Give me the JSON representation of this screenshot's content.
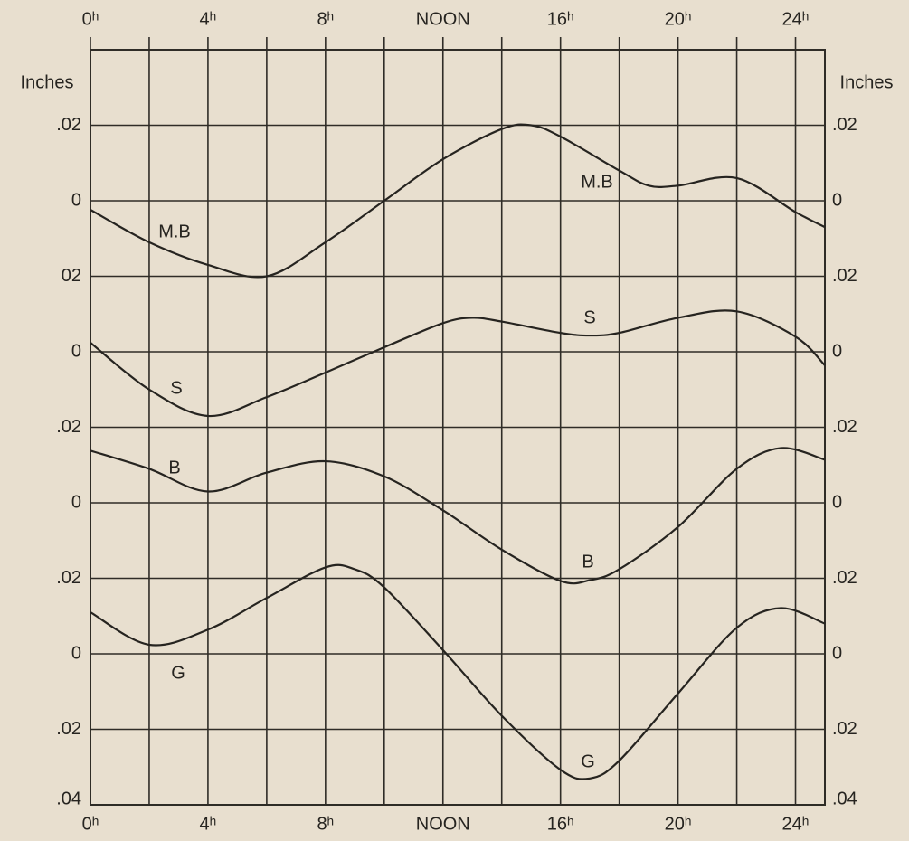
{
  "chart_data": [
    {
      "type": "line",
      "ylabel": "Inches",
      "y2label": "Inches",
      "grid": true,
      "xlim": [
        0,
        25
      ],
      "xticks": [
        {
          "value": 0,
          "label": "0ʰ"
        },
        {
          "value": 4,
          "label": "4ʰ"
        },
        {
          "value": 8,
          "label": "8ʰ"
        },
        {
          "value": 12,
          "label": "NOON"
        },
        {
          "value": 16,
          "label": "16ʰ"
        },
        {
          "value": 20,
          "label": "20ʰ"
        },
        {
          "value": 24,
          "label": "24ʰ"
        }
      ],
      "xminorticks": [
        2,
        6,
        10,
        14,
        18,
        22
      ],
      "ylim": [
        -0.16,
        0.04
      ],
      "yticks": [
        {
          "value": 0.02,
          "label": ".02"
        },
        0,
        {
          "value": -0.02,
          "label": "02"
        }
      ],
      "y2lim": [
        -0.16,
        0.04
      ],
      "y2ticks": [
        {
          "value": 0.02,
          "label": ".02"
        },
        0,
        {
          "value": -0.02,
          "label": ".02"
        }
      ],
      "series": [
        {
          "name": "M.B",
          "color": "#262420",
          "x": [
            0,
            2,
            4,
            6,
            8,
            10,
            12,
            14,
            15,
            16,
            18,
            19,
            20,
            22,
            24,
            25
          ],
          "values": [
            -0.0024,
            -0.011,
            -0.017,
            -0.02,
            -0.011,
            0,
            0.011,
            0.019,
            0.02,
            0.017,
            0.008,
            0.004,
            0.004,
            0.006,
            -0.003,
            -0.007
          ]
        }
      ]
    },
    {
      "type": "line",
      "ylim": [
        -0.12,
        0.08
      ],
      "yticks": [
        0,
        {
          "value": -0.02,
          "label": ".02"
        }
      ],
      "y2lim": [
        -0.12,
        0.08
      ],
      "y2ticks": [
        0,
        {
          "value": -0.02,
          "label": ".02"
        }
      ],
      "series": [
        {
          "name": "S",
          "color": "#262420",
          "x": [
            0,
            2,
            4,
            6,
            8,
            10,
            12,
            13,
            14,
            16,
            17,
            18,
            20,
            22,
            24,
            25
          ],
          "values": [
            0.0024,
            -0.01,
            -0.017,
            -0.012,
            -0.0055,
            0.0012,
            0.0076,
            0.009,
            0.008,
            0.005,
            0.0043,
            0.005,
            0.009,
            0.0107,
            0.004,
            -0.0036
          ]
        }
      ]
    },
    {
      "type": "line",
      "ylim": [
        -0.08,
        0.12
      ],
      "yticks": [
        0,
        {
          "value": -0.02,
          "label": ".02"
        }
      ],
      "y2lim": [
        -0.08,
        0.12
      ],
      "y2ticks": [
        0,
        {
          "value": -0.02,
          "label": ".02"
        }
      ],
      "series": [
        {
          "name": "B",
          "color": "#262420",
          "x": [
            0,
            2,
            4,
            6,
            8,
            10,
            12,
            14,
            16,
            17,
            18,
            20,
            22,
            23.5,
            25
          ],
          "values": [
            0.0138,
            0.009,
            0.003,
            0.008,
            0.011,
            0.007,
            -0.002,
            -0.0124,
            -0.0207,
            -0.0205,
            -0.0176,
            -0.0064,
            0.009,
            0.0145,
            0.0114
          ]
        }
      ]
    },
    {
      "type": "line",
      "ylim": [
        -0.04,
        0.16
      ],
      "yticks": [
        0,
        {
          "value": -0.02,
          "label": ".02"
        },
        {
          "value": -0.04,
          "label": ".04"
        }
      ],
      "y2lim": [
        -0.04,
        0.16
      ],
      "y2ticks": [
        0,
        {
          "value": -0.02,
          "label": ".02"
        },
        {
          "value": -0.04,
          "label": ".04"
        }
      ],
      "series": [
        {
          "name": "G",
          "color": "#262420",
          "x": [
            0,
            2,
            4,
            6,
            8,
            9,
            10,
            12,
            14,
            16,
            17,
            18,
            20,
            22,
            23.5,
            25
          ],
          "values": [
            0.011,
            0.0024,
            0.0064,
            0.0148,
            0.0229,
            0.0224,
            0.0176,
            0.001,
            -0.0164,
            -0.0307,
            -0.033,
            -0.0283,
            -0.0105,
            0.0069,
            0.0121,
            0.008
          ]
        }
      ]
    }
  ]
}
